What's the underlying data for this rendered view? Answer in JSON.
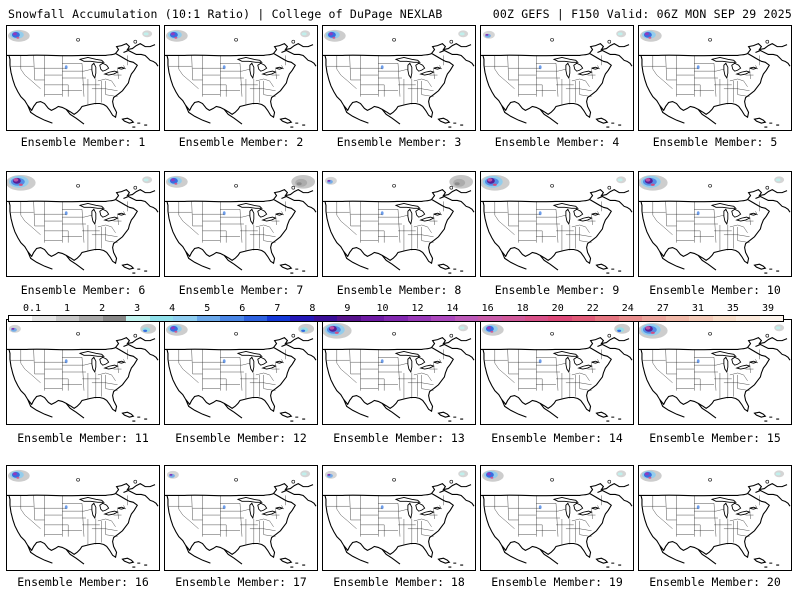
{
  "header": {
    "title_left": "Snowfall Accumulation (10:1 Ratio) | College of DuPage NEXLAB",
    "title_right": "00Z GEFS | F150 Valid: 06Z MON SEP 29 2025"
  },
  "members": [
    {
      "label": "Ensemble Member: 1",
      "nw_snow": "medium",
      "ne_snow": "light"
    },
    {
      "label": "Ensemble Member: 2",
      "nw_snow": "medium",
      "ne_snow": "light"
    },
    {
      "label": "Ensemble Member: 3",
      "nw_snow": "medium",
      "ne_snow": "light"
    },
    {
      "label": "Ensemble Member: 4",
      "nw_snow": "light",
      "ne_snow": "light"
    },
    {
      "label": "Ensemble Member: 5",
      "nw_snow": "medium",
      "ne_snow": "none"
    },
    {
      "label": "Ensemble Member: 6",
      "nw_snow": "heavy",
      "ne_snow": "light"
    },
    {
      "label": "Ensemble Member: 7",
      "nw_snow": "medium",
      "ne_snow": "heavy"
    },
    {
      "label": "Ensemble Member: 8",
      "nw_snow": "light",
      "ne_snow": "heavy"
    },
    {
      "label": "Ensemble Member: 9",
      "nw_snow": "heavy",
      "ne_snow": "light"
    },
    {
      "label": "Ensemble Member: 10",
      "nw_snow": "heavy",
      "ne_snow": "light"
    },
    {
      "label": "Ensemble Member: 11",
      "nw_snow": "light",
      "ne_snow": "medium"
    },
    {
      "label": "Ensemble Member: 12",
      "nw_snow": "medium",
      "ne_snow": "medium"
    },
    {
      "label": "Ensemble Member: 13",
      "nw_snow": "heavy",
      "ne_snow": "light"
    },
    {
      "label": "Ensemble Member: 14",
      "nw_snow": "medium",
      "ne_snow": "medium"
    },
    {
      "label": "Ensemble Member: 15",
      "nw_snow": "heavy",
      "ne_snow": "light"
    },
    {
      "label": "Ensemble Member: 16",
      "nw_snow": "medium",
      "ne_snow": "none"
    },
    {
      "label": "Ensemble Member: 17",
      "nw_snow": "light",
      "ne_snow": "light"
    },
    {
      "label": "Ensemble Member: 18",
      "nw_snow": "light",
      "ne_snow": "light"
    },
    {
      "label": "Ensemble Member: 19",
      "nw_snow": "medium",
      "ne_snow": "light"
    },
    {
      "label": "Ensemble Member: 20",
      "nw_snow": "medium",
      "ne_snow": "light"
    }
  ],
  "legend": {
    "ticks": [
      "0.1",
      "1",
      "2",
      "3",
      "4",
      "5",
      "6",
      "7",
      "8",
      "9",
      "10",
      "12",
      "14",
      "16",
      "18",
      "20",
      "22",
      "24",
      "27",
      "31",
      "35",
      "39"
    ],
    "colors": [
      "#ffffff",
      "#e4e4e4",
      "#c8c8c8",
      "#a8a8a8",
      "#888888",
      "#bff2ee",
      "#8fe0ea",
      "#8ecdf0",
      "#6aa8ea",
      "#4a86e6",
      "#2e62e0",
      "#1438d8",
      "#2418b8",
      "#3a0e98",
      "#56128c",
      "#6e1aa4",
      "#8228b0",
      "#9838b8",
      "#ac48be",
      "#bc58b8",
      "#c85aa8",
      "#d0589a",
      "#d85088",
      "#dc4878",
      "#e05a78",
      "#e47480",
      "#e88c8c",
      "#eca49c",
      "#f0b8a8",
      "#f4cab8",
      "#f7dcc8",
      "#fae8da",
      "#fdf4ec"
    ]
  }
}
